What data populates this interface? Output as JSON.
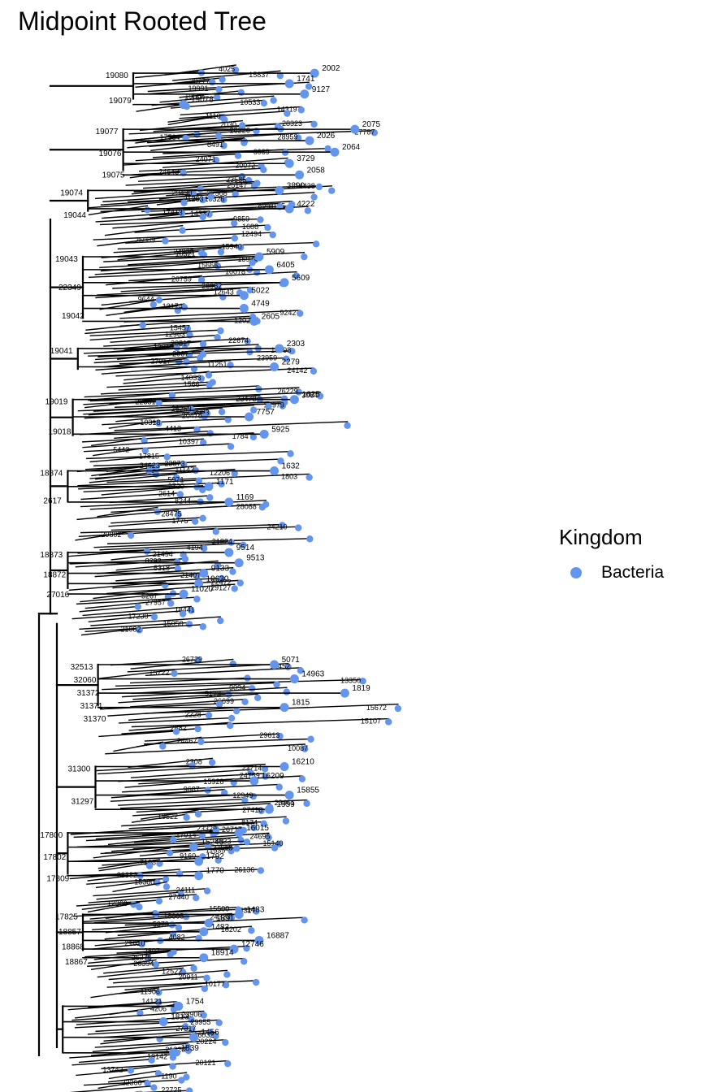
{
  "chart_data": {
    "type": "tree",
    "title": "Midpoint Rooted Tree",
    "legend": {
      "title": "Kingdom",
      "position": "right",
      "entries": [
        {
          "name": "Bacteria",
          "color": "#6495ED"
        }
      ]
    },
    "branch_color": "#000000",
    "tip_color": "#6495ED",
    "clades": [
      {
        "id": "19080",
        "depth": 0.2,
        "y": 0.02,
        "span": 0.025,
        "nodes": [
          {
            "label": "19080"
          },
          {
            "label": "19079"
          }
        ],
        "tips": [
          {
            "label": "2002",
            "depth": 0.56
          },
          {
            "label": "1741",
            "depth": 0.51
          },
          {
            "label": "9127",
            "depth": 0.54
          },
          {
            "label": "19078",
            "depth": 0.3
          }
        ]
      },
      {
        "id": "19076",
        "depth": 0.18,
        "y": 0.075,
        "span": 0.04,
        "nodes": [
          {
            "label": "19077"
          },
          {
            "label": "19076"
          },
          {
            "label": "19075"
          }
        ],
        "tips": [
          {
            "label": "2075",
            "depth": 0.64
          },
          {
            "label": "2026",
            "depth": 0.55
          },
          {
            "label": "2064",
            "depth": 0.6
          },
          {
            "label": "3729",
            "depth": 0.51
          },
          {
            "label": "2058",
            "depth": 0.53
          }
        ]
      },
      {
        "id": "19044",
        "depth": 0.11,
        "y": 0.135,
        "span": 0.02,
        "nodes": [
          {
            "label": "19074"
          },
          {
            "label": "19044"
          }
        ],
        "tips": [
          {
            "label": "3890",
            "depth": 0.49
          },
          {
            "label": "4222",
            "depth": 0.51
          }
        ]
      },
      {
        "id": "19043",
        "depth": 0.1,
        "y": 0.2,
        "span": 0.06,
        "nodes": [
          {
            "label": "19043"
          },
          {
            "label": "22349"
          },
          {
            "label": "19042"
          }
        ],
        "tips": [
          {
            "label": "5909",
            "depth": 0.45
          },
          {
            "label": "6405",
            "depth": 0.47
          },
          {
            "label": "5609",
            "depth": 0.5
          },
          {
            "label": "5022",
            "depth": 0.42
          },
          {
            "label": "4749",
            "depth": 0.42
          },
          {
            "label": "2605",
            "depth": 0.44
          }
        ]
      },
      {
        "id": "19041",
        "depth": 0.09,
        "y": 0.29,
        "span": 0.02,
        "nodes": [
          {
            "label": "19041"
          }
        ],
        "tips": [
          {
            "label": "2303",
            "depth": 0.49
          },
          {
            "label": "2279",
            "depth": 0.48
          }
        ]
      },
      {
        "id": "19019",
        "depth": 0.08,
        "y": 0.34,
        "span": 0.035,
        "nodes": [
          {
            "label": "19019"
          },
          {
            "label": "19018"
          }
        ],
        "tips": [
          {
            "label": "1625",
            "depth": 0.52
          },
          {
            "label": "7757",
            "depth": 0.43
          },
          {
            "label": "5925",
            "depth": 0.46
          }
        ]
      },
      {
        "id": "18874",
        "depth": 0.07,
        "y": 0.41,
        "span": 0.03,
        "nodes": [
          {
            "label": "18874"
          },
          {
            "label": "2617"
          }
        ],
        "tips": [
          {
            "label": "1632",
            "depth": 0.48
          },
          {
            "label": "1171",
            "depth": 0.35
          },
          {
            "label": "1169",
            "depth": 0.39
          }
        ]
      },
      {
        "id": "18873",
        "depth": 0.07,
        "y": 0.49,
        "span": 0.035,
        "nodes": [
          {
            "label": "18873"
          },
          {
            "label": "18872"
          },
          {
            "label": "27016"
          }
        ],
        "tips": [
          {
            "label": "9514",
            "depth": 0.39
          },
          {
            "label": "9513",
            "depth": 0.41
          },
          {
            "label": "9133",
            "depth": 0.34
          },
          {
            "label": "10630",
            "depth": 0.33
          },
          {
            "label": "11020",
            "depth": 0.3
          }
        ]
      },
      {
        "id": "32513",
        "depth": 0.13,
        "y": 0.6,
        "span": 0.04,
        "nodes": [
          {
            "label": "32513"
          },
          {
            "label": "32060"
          },
          {
            "label": "31372"
          },
          {
            "label": "31371"
          },
          {
            "label": "31370"
          }
        ],
        "tips": [
          {
            "label": "5071",
            "depth": 0.48
          },
          {
            "label": "14963",
            "depth": 0.52
          },
          {
            "label": "1819",
            "depth": 0.62
          },
          {
            "label": "1815",
            "depth": 0.5
          }
        ]
      },
      {
        "id": "31300",
        "depth": 0.125,
        "y": 0.7,
        "span": 0.04,
        "nodes": [
          {
            "label": "31300"
          },
          {
            "label": "31297"
          }
        ],
        "tips": [
          {
            "label": "16210",
            "depth": 0.5
          },
          {
            "label": "16209",
            "depth": 0.44
          },
          {
            "label": "15855",
            "depth": 0.51
          },
          {
            "label": "1959",
            "depth": 0.47
          }
        ]
      },
      {
        "id": "17800",
        "depth": 0.07,
        "y": 0.765,
        "span": 0.04,
        "nodes": [
          {
            "label": "17800"
          },
          {
            "label": "17802"
          },
          {
            "label": "17809"
          }
        ],
        "tips": [
          {
            "label": "16015",
            "depth": 0.41
          },
          {
            "label": "15240",
            "depth": 0.32
          },
          {
            "label": "1792",
            "depth": 0.33
          },
          {
            "label": "1770",
            "depth": 0.33
          }
        ]
      },
      {
        "id": "17825",
        "depth": 0.1,
        "y": 0.845,
        "span": 0.035,
        "nodes": [
          {
            "label": "17825"
          },
          {
            "label": "18857"
          },
          {
            "label": "18868"
          },
          {
            "label": "18867"
          }
        ],
        "tips": [
          {
            "label": "1483",
            "depth": 0.41
          },
          {
            "label": "1891",
            "depth": 0.35
          },
          {
            "label": "1482",
            "depth": 0.34
          },
          {
            "label": "16887",
            "depth": 0.45
          },
          {
            "label": "12746",
            "depth": 0.4
          },
          {
            "label": "18914",
            "depth": 0.34
          }
        ]
      },
      {
        "id": "20902",
        "depth": 0.06,
        "y": 0.935,
        "span": 0.045,
        "nodes": [],
        "tips": [
          {
            "label": "1754",
            "depth": 0.29
          },
          {
            "label": "1813",
            "depth": 0.26
          },
          {
            "label": "1456",
            "depth": 0.32
          },
          {
            "label": "1839",
            "depth": 0.28
          }
        ]
      }
    ]
  }
}
